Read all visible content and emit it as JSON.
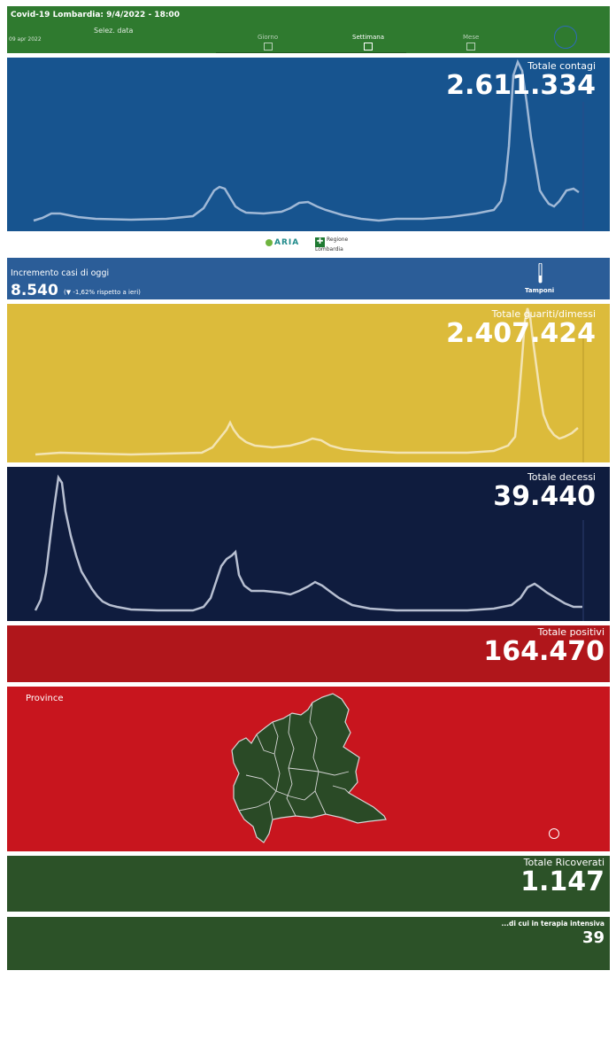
{
  "header": {
    "title": "Covid-19 Lombardia: 9/4/2022 - 18:00",
    "select_label": "Selez. data",
    "date_value": "09 apr 2022",
    "segments": [
      "Giorno",
      "Settimana",
      "Mese"
    ]
  },
  "contagi": {
    "label": "Totale contagi",
    "value": "2.611.334"
  },
  "logos": {
    "aria": "ARIA",
    "regione_line1": "Regione",
    "regione_line2": "Lombardia"
  },
  "incremento": {
    "label": "Incremento casi di oggi",
    "value": "8.540",
    "delta": "(▼ -1,62% rispetto a  ieri)",
    "tamponi": "Tamponi"
  },
  "guariti": {
    "label": "Totale guariti/dimessi",
    "value": "2.407.424"
  },
  "decessi": {
    "label": "Totale decessi",
    "value": "39.440"
  },
  "positivi": {
    "label": "Totale positivi",
    "value": "164.470"
  },
  "province": {
    "label": "Province"
  },
  "ricoverati": {
    "label": "Totale Ricoverati",
    "value": "1.147"
  },
  "terapia": {
    "label": "...di cui in terapia intensiva",
    "value": "39"
  },
  "colors": {
    "header_green": "#2f7a2f",
    "contagi_blue": "#17548f",
    "guariti_yellow": "#dcbb3b",
    "decessi_navy": "#0f1c3e",
    "positivi_red": "#b0161b",
    "province_red": "#c8151e",
    "ricoverati_green": "#2c5228"
  },
  "icons": [
    "calendar-day-icon",
    "calendar-week-icon",
    "calendar-month-icon",
    "test-tube-icon",
    "zoom-icon"
  ]
}
